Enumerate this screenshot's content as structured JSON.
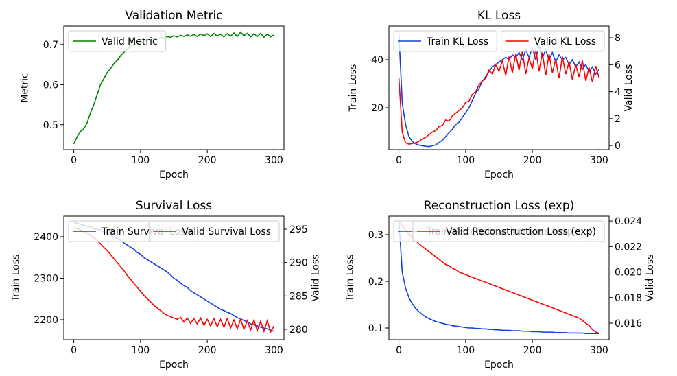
{
  "chart_data": [
    {
      "type": "line",
      "title": "Validation Metric",
      "xlabel": "Epoch",
      "ylabel": "Metric",
      "x": [
        0,
        5,
        10,
        15,
        20,
        25,
        30,
        35,
        40,
        45,
        50,
        55,
        60,
        65,
        70,
        75,
        80,
        85,
        90,
        95,
        100,
        105,
        110,
        115,
        120,
        125,
        130,
        135,
        140,
        145,
        150,
        155,
        160,
        165,
        170,
        175,
        180,
        185,
        190,
        195,
        200,
        205,
        210,
        215,
        220,
        225,
        230,
        235,
        240,
        245,
        250,
        255,
        260,
        265,
        270,
        275,
        280,
        285,
        290,
        295,
        300
      ],
      "xlim": [
        -15,
        315
      ],
      "xticks": [
        0,
        100,
        200,
        300
      ],
      "ylim": [
        0.438,
        0.746
      ],
      "yticks": [
        0.5,
        0.6,
        0.7
      ],
      "series": [
        {
          "name": "Valid Metric",
          "color": "#008000",
          "axis": "y",
          "legend": "upper left",
          "values": [
            0.452,
            0.47,
            0.483,
            0.49,
            0.505,
            0.53,
            0.55,
            0.575,
            0.6,
            0.615,
            0.63,
            0.64,
            0.652,
            0.66,
            0.672,
            0.68,
            0.688,
            0.695,
            0.7,
            0.703,
            0.705,
            0.708,
            0.712,
            0.71,
            0.715,
            0.713,
            0.718,
            0.716,
            0.72,
            0.718,
            0.722,
            0.719,
            0.723,
            0.72,
            0.724,
            0.721,
            0.725,
            0.72,
            0.726,
            0.722,
            0.727,
            0.72,
            0.728,
            0.721,
            0.726,
            0.719,
            0.727,
            0.721,
            0.729,
            0.72,
            0.731,
            0.722,
            0.728,
            0.719,
            0.727,
            0.72,
            0.728,
            0.718,
            0.726,
            0.719,
            0.724
          ]
        }
      ]
    },
    {
      "type": "line",
      "title": "KL Loss",
      "xlabel": "Epoch",
      "ylabel": "Train Loss",
      "y2label": "Valid Loss",
      "x": [
        0,
        5,
        10,
        15,
        20,
        25,
        30,
        35,
        40,
        45,
        50,
        55,
        60,
        65,
        70,
        75,
        80,
        85,
        90,
        95,
        100,
        105,
        110,
        115,
        120,
        125,
        130,
        135,
        140,
        145,
        150,
        155,
        160,
        165,
        170,
        175,
        180,
        185,
        190,
        195,
        200,
        205,
        210,
        215,
        220,
        225,
        230,
        235,
        240,
        245,
        250,
        255,
        260,
        265,
        270,
        275,
        280,
        285,
        290,
        295,
        300
      ],
      "xlim": [
        -15,
        315
      ],
      "xticks": [
        0,
        100,
        200,
        300
      ],
      "ylim": [
        2.6,
        54
      ],
      "yticks": [
        20,
        40
      ],
      "y2lim": [
        -0.3,
        8.87
      ],
      "y2ticks": [
        0,
        2,
        4,
        6,
        8
      ],
      "series": [
        {
          "name": "Train KL Loss",
          "color": "#1040e0",
          "axis": "y",
          "legend": "upper left",
          "values": [
            51,
            22,
            13,
            8,
            6,
            5,
            4.5,
            4.2,
            4,
            3.8,
            4.2,
            4.5,
            5.5,
            6.5,
            8,
            9.5,
            11,
            13,
            14,
            16,
            18,
            20,
            23,
            26,
            28,
            31,
            33,
            35,
            37,
            38,
            39,
            40,
            41,
            40,
            42,
            41,
            43,
            40,
            44,
            41,
            45,
            40,
            46,
            41,
            44,
            40,
            43,
            39,
            42,
            40,
            41,
            38,
            40,
            37,
            39,
            36,
            38,
            35,
            37,
            34,
            36
          ]
        },
        {
          "name": "Valid KL Loss",
          "color": "#ff0000",
          "axis": "y2",
          "legend": "upper right",
          "values": [
            5,
            1,
            0.2,
            0.1,
            0.15,
            0.2,
            0.3,
            0.5,
            0.6,
            0.8,
            1.0,
            1.1,
            1.4,
            1.5,
            1.9,
            1.8,
            2.2,
            2.4,
            2.6,
            2.8,
            3.2,
            3.3,
            3.8,
            4.0,
            4.5,
            4.8,
            5.0,
            5.6,
            5.3,
            6.0,
            5.5,
            6.3,
            5.2,
            6.6,
            5.4,
            6.8,
            5.6,
            7.0,
            5.3,
            6.5,
            5.7,
            7.2,
            5.5,
            6.9,
            5.2,
            6.8,
            5.4,
            6.4,
            5.0,
            6.6,
            5.3,
            6.2,
            4.9,
            6.0,
            5.1,
            6.3,
            4.8,
            5.8,
            4.7,
            5.9,
            5.0
          ]
        }
      ]
    },
    {
      "type": "line",
      "title": "Survival Loss",
      "xlabel": "Epoch",
      "ylabel": "Train Loss",
      "y2label": "Valid Loss",
      "x": [
        0,
        5,
        10,
        15,
        20,
        25,
        30,
        35,
        40,
        45,
        50,
        55,
        60,
        65,
        70,
        75,
        80,
        85,
        90,
        95,
        100,
        105,
        110,
        115,
        120,
        125,
        130,
        135,
        140,
        145,
        150,
        155,
        160,
        165,
        170,
        175,
        180,
        185,
        190,
        195,
        200,
        205,
        210,
        215,
        220,
        225,
        230,
        235,
        240,
        245,
        250,
        255,
        260,
        265,
        270,
        275,
        280,
        285,
        290,
        295,
        300
      ],
      "xlim": [
        -15,
        315
      ],
      "xticks": [
        0,
        100,
        200,
        300
      ],
      "ylim": [
        2152,
        2449.6
      ],
      "yticks": [
        2200,
        2300,
        2400
      ],
      "y2lim": [
        278.46,
        296.95
      ],
      "y2ticks": [
        280,
        285,
        290,
        295
      ],
      "series": [
        {
          "name": "Train Survival Loss",
          "color": "#1040e0",
          "axis": "y",
          "legend": "upper left",
          "values": [
            2435,
            2432,
            2430,
            2428,
            2425,
            2424,
            2420,
            2418,
            2415,
            2412,
            2410,
            2405,
            2400,
            2395,
            2392,
            2385,
            2380,
            2375,
            2370,
            2362,
            2358,
            2350,
            2345,
            2340,
            2335,
            2330,
            2325,
            2320,
            2315,
            2308,
            2300,
            2295,
            2288,
            2282,
            2278,
            2270,
            2265,
            2260,
            2255,
            2250,
            2245,
            2240,
            2235,
            2230,
            2225,
            2222,
            2218,
            2215,
            2210,
            2205,
            2202,
            2198,
            2195,
            2190,
            2188,
            2185,
            2182,
            2180,
            2178,
            2175,
            2172
          ]
        },
        {
          "name": "Valid Survival Loss",
          "color": "#ff0000",
          "axis": "y2",
          "legend": "upper right",
          "values": [
            295.2,
            295.1,
            294.9,
            294.6,
            294.4,
            294.1,
            293.7,
            293.3,
            292.8,
            292.3,
            291.8,
            291.2,
            290.6,
            290.0,
            289.4,
            288.8,
            288.1,
            287.5,
            286.9,
            286.3,
            285.7,
            285.1,
            284.6,
            284.1,
            283.6,
            283.2,
            282.8,
            282.4,
            282.1,
            281.9,
            281.7,
            281.5,
            281.8,
            281.1,
            281.7,
            280.9,
            281.6,
            280.8,
            281.7,
            280.6,
            281.5,
            280.5,
            281.6,
            280.4,
            281.5,
            280.3,
            281.6,
            280.2,
            281.4,
            280.1,
            281.5,
            280.0,
            281.3,
            279.9,
            281.4,
            279.8,
            281.2,
            279.7,
            281.3,
            279.6,
            280.5
          ]
        }
      ]
    },
    {
      "type": "line",
      "title": "Reconstruction Loss (exp)",
      "xlabel": "Epoch",
      "ylabel": "Train Loss",
      "y2label": "Valid Loss",
      "x": [
        0,
        5,
        10,
        15,
        20,
        25,
        30,
        35,
        40,
        45,
        50,
        55,
        60,
        65,
        70,
        75,
        80,
        85,
        90,
        95,
        100,
        105,
        110,
        115,
        120,
        125,
        130,
        135,
        140,
        145,
        150,
        155,
        160,
        165,
        170,
        175,
        180,
        185,
        190,
        195,
        200,
        205,
        210,
        215,
        220,
        225,
        230,
        235,
        240,
        245,
        250,
        255,
        260,
        265,
        270,
        275,
        280,
        285,
        290,
        295,
        300
      ],
      "xlim": [
        -15,
        315
      ],
      "xticks": [
        0,
        100,
        200,
        300
      ],
      "ylim": [
        0.075,
        0.3397
      ],
      "yticks": [
        0.1,
        0.2,
        0.3
      ],
      "y2lim": [
        0.01471,
        0.02438
      ],
      "y2ticks": [
        0.016,
        0.018,
        {
          "value": 0.02,
          "label": "0.020"
        },
        0.022,
        0.024
      ],
      "series": [
        {
          "name": "Train Reconstruction Loss (exp)",
          "color": "#1040e0",
          "axis": "y",
          "legend": "upper left",
          "values": [
            0.33,
            0.22,
            0.185,
            0.165,
            0.152,
            0.142,
            0.135,
            0.129,
            0.124,
            0.12,
            0.117,
            0.114,
            0.112,
            0.11,
            0.108,
            0.107,
            0.105,
            0.104,
            0.103,
            0.102,
            0.101,
            0.1,
            0.1,
            0.099,
            0.099,
            0.098,
            0.098,
            0.097,
            0.097,
            0.096,
            0.096,
            0.095,
            0.095,
            0.095,
            0.094,
            0.094,
            0.094,
            0.093,
            0.093,
            0.093,
            0.092,
            0.092,
            0.092,
            0.091,
            0.091,
            0.091,
            0.091,
            0.09,
            0.09,
            0.09,
            0.09,
            0.089,
            0.089,
            0.089,
            0.089,
            0.089,
            0.088,
            0.088,
            0.088,
            0.088,
            0.088
          ]
        },
        {
          "name": "Valid Reconstruction Loss (exp)",
          "color": "#ff0000",
          "axis": "y2",
          "legend": "upper right",
          "values": [
            0.0239,
            0.0236,
            0.0233,
            0.023,
            0.0227,
            0.0225,
            0.0222,
            0.022,
            0.0218,
            0.0216,
            0.0214,
            0.0212,
            0.021,
            0.0208,
            0.0206,
            0.0205,
            0.0203,
            0.0202,
            0.02,
            0.0199,
            0.0198,
            0.0197,
            0.0196,
            0.0195,
            0.0194,
            0.0193,
            0.0192,
            0.0191,
            0.019,
            0.0189,
            0.0188,
            0.0187,
            0.0186,
            0.0185,
            0.0184,
            0.0183,
            0.0182,
            0.0181,
            0.018,
            0.0179,
            0.0178,
            0.0177,
            0.0176,
            0.0175,
            0.0174,
            0.0173,
            0.0172,
            0.0171,
            0.017,
            0.0169,
            0.0168,
            0.0167,
            0.0166,
            0.0165,
            0.0164,
            0.0162,
            0.016,
            0.0158,
            0.0155,
            0.0153,
            0.0152
          ]
        }
      ]
    }
  ]
}
